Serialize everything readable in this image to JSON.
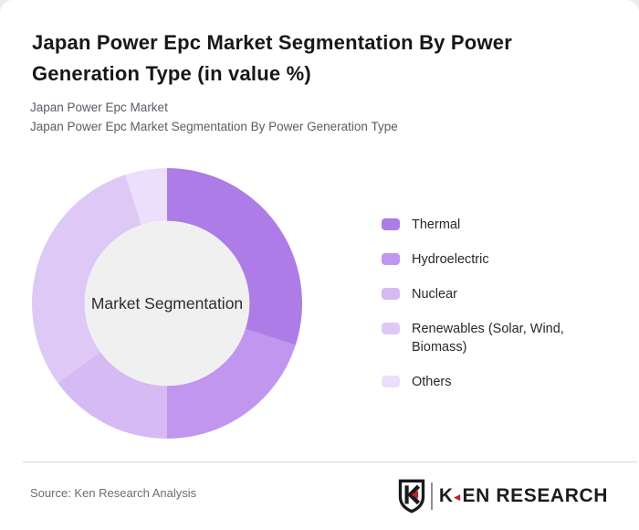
{
  "header": {
    "title_lines": [
      "Japan Power Epc Market Segmentation By Power",
      "Generation Type (in value %)"
    ],
    "subtitle_lines": [
      "Japan Power Epc Market",
      "Japan Power Epc Market Segmentation By Power Generation Type"
    ]
  },
  "chart_data": {
    "type": "pie",
    "donut": true,
    "title": "Japan Power Epc Market Segmentation By Power Generation Type (in value %)",
    "center_label": "Market Segmentation",
    "categories": [
      "Thermal",
      "Hydroelectric",
      "Nuclear",
      "Renewables (Solar, Wind, Biomass)",
      "Others"
    ],
    "values": [
      30,
      20,
      15,
      30,
      5
    ],
    "unit": "%",
    "colors": [
      "#ae7ce6",
      "#c096ee",
      "#d6baf3",
      "#dec9f6",
      "#ecdffb"
    ],
    "start_angle_deg": 0,
    "direction": "clockwise",
    "inner_radius_ratio": 0.61,
    "center_fill": "#f0f0f0",
    "legend_position": "right",
    "grid": false
  },
  "footer": {
    "source": "Source: Ken Research Analysis",
    "logo": {
      "k": "K",
      "triangle": "◄",
      "rest": "EN RESEARCH",
      "accent_color": "#c42127"
    }
  }
}
